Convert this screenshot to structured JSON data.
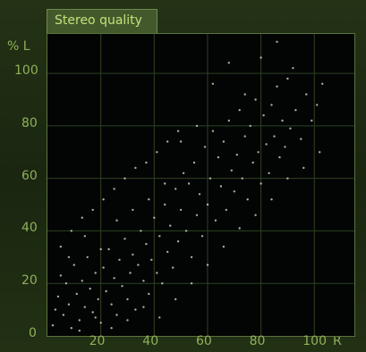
{
  "window": {
    "title": "Stereo quality"
  },
  "chart_data": {
    "type": "scatter",
    "title": "Stereo quality",
    "xlabel": "R",
    "ylabel": "% L",
    "xlim": [
      0,
      115
    ],
    "ylim": [
      0,
      115
    ],
    "x_ticks": [
      20,
      40,
      60,
      80,
      100
    ],
    "y_ticks": [
      0,
      20,
      40,
      60,
      80,
      100
    ],
    "grid": true,
    "colors": {
      "background": "#030504",
      "grid": "#2f4222",
      "point": "#dfe6d6",
      "accent_text": "#8fb05a"
    },
    "series": [
      {
        "points": [
          [
            2,
            4
          ],
          [
            3,
            10
          ],
          [
            4,
            15
          ],
          [
            5,
            23
          ],
          [
            6,
            8
          ],
          [
            7,
            20
          ],
          [
            8,
            12
          ],
          [
            9,
            3
          ],
          [
            10,
            27
          ],
          [
            11,
            16
          ],
          [
            12,
            6
          ],
          [
            13,
            21
          ],
          [
            14,
            11
          ],
          [
            15,
            30
          ],
          [
            16,
            18
          ],
          [
            17,
            9
          ],
          [
            18,
            24
          ],
          [
            19,
            14
          ],
          [
            20,
            5
          ],
          [
            21,
            26
          ],
          [
            22,
            17
          ],
          [
            23,
            33
          ],
          [
            24,
            12
          ],
          [
            25,
            22
          ],
          [
            26,
            8
          ],
          [
            27,
            29
          ],
          [
            28,
            19
          ],
          [
            29,
            37
          ],
          [
            30,
            14
          ],
          [
            31,
            24
          ],
          [
            32,
            31
          ],
          [
            33,
            10
          ],
          [
            34,
            27
          ],
          [
            35,
            40
          ],
          [
            36,
            21
          ],
          [
            37,
            35
          ],
          [
            38,
            16
          ],
          [
            39,
            29
          ],
          [
            40,
            45
          ],
          [
            41,
            24
          ],
          [
            42,
            38
          ],
          [
            43,
            20
          ],
          [
            44,
            50
          ],
          [
            45,
            32
          ],
          [
            46,
            42
          ],
          [
            47,
            26
          ],
          [
            48,
            56
          ],
          [
            49,
            36
          ],
          [
            50,
            48
          ],
          [
            51,
            62
          ],
          [
            52,
            40
          ],
          [
            53,
            58
          ],
          [
            54,
            30
          ],
          [
            55,
            66
          ],
          [
            56,
            46
          ],
          [
            57,
            54
          ],
          [
            58,
            38
          ],
          [
            59,
            72
          ],
          [
            60,
            50
          ],
          [
            61,
            60
          ],
          [
            62,
            78
          ],
          [
            63,
            44
          ],
          [
            64,
            68
          ],
          [
            65,
            57
          ],
          [
            66,
            74
          ],
          [
            67,
            48
          ],
          [
            68,
            82
          ],
          [
            69,
            63
          ],
          [
            70,
            55
          ],
          [
            71,
            69
          ],
          [
            72,
            86
          ],
          [
            73,
            60
          ],
          [
            74,
            76
          ],
          [
            75,
            52
          ],
          [
            76,
            80
          ],
          [
            77,
            66
          ],
          [
            78,
            90
          ],
          [
            79,
            70
          ],
          [
            80,
            58
          ],
          [
            81,
            84
          ],
          [
            82,
            73
          ],
          [
            83,
            62
          ],
          [
            84,
            88
          ],
          [
            85,
            76
          ],
          [
            86,
            95
          ],
          [
            87,
            68
          ],
          [
            88,
            82
          ],
          [
            89,
            72
          ],
          [
            90,
            98
          ],
          [
            91,
            79
          ],
          [
            93,
            86
          ],
          [
            95,
            75
          ],
          [
            97,
            92
          ],
          [
            99,
            82
          ],
          [
            101,
            88
          ],
          [
            103,
            96
          ],
          [
            8,
            30
          ],
          [
            14,
            38
          ],
          [
            20,
            33
          ],
          [
            26,
            44
          ],
          [
            32,
            48
          ],
          [
            38,
            52
          ],
          [
            44,
            58
          ],
          [
            50,
            74
          ],
          [
            56,
            80
          ],
          [
            62,
            96
          ],
          [
            68,
            104
          ],
          [
            74,
            92
          ],
          [
            80,
            106
          ],
          [
            86,
            112
          ],
          [
            92,
            102
          ],
          [
            12,
            2
          ],
          [
            18,
            7
          ],
          [
            24,
            3
          ],
          [
            30,
            6
          ],
          [
            36,
            11
          ],
          [
            42,
            7
          ],
          [
            48,
            14
          ],
          [
            54,
            20
          ],
          [
            60,
            27
          ],
          [
            66,
            34
          ],
          [
            72,
            41
          ],
          [
            78,
            46
          ],
          [
            84,
            52
          ],
          [
            90,
            60
          ],
          [
            96,
            64
          ],
          [
            102,
            70
          ],
          [
            5,
            34
          ],
          [
            9,
            40
          ],
          [
            13,
            45
          ],
          [
            17,
            48
          ],
          [
            21,
            52
          ],
          [
            25,
            56
          ],
          [
            29,
            60
          ],
          [
            33,
            64
          ],
          [
            37,
            66
          ],
          [
            41,
            70
          ],
          [
            45,
            74
          ],
          [
            49,
            78
          ]
        ]
      }
    ]
  }
}
